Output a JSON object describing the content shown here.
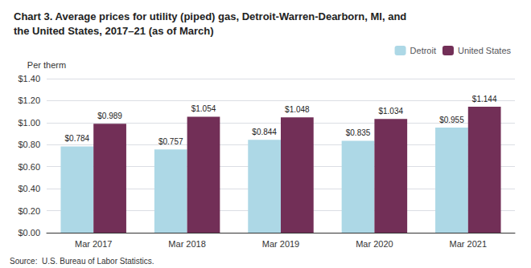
{
  "chart_data": {
    "type": "bar",
    "title": "Chart 3. Average prices for utility (piped) gas, Detroit-Warren-Dearborn, MI, and\nthe United States, 2017–21 (as of March)",
    "ylabel": "Per therm",
    "annotations": [
      "Source:  U.S. Bureau of Labor Statistics."
    ],
    "categories": [
      "Mar 2017",
      "Mar 2018",
      "Mar 2019",
      "Mar 2020",
      "Mar 2021"
    ],
    "series": [
      {
        "name": "Detroit",
        "color": "#add8e6",
        "values": [
          0.784,
          0.757,
          0.844,
          0.835,
          0.955
        ],
        "value_labels": [
          "$0.784",
          "$0.757",
          "$0.844",
          "$0.835",
          "$0.955"
        ]
      },
      {
        "name": "United States",
        "color": "#722f57",
        "values": [
          0.989,
          1.054,
          1.048,
          1.034,
          1.144
        ],
        "value_labels": [
          "$0.989",
          "$1.054",
          "$1.048",
          "$1.034",
          "$1.144"
        ]
      }
    ],
    "ylim": [
      0.0,
      1.4
    ],
    "yticks": [
      {
        "value": 0.0,
        "label": "$0.00"
      },
      {
        "value": 0.2,
        "label": "$0.20"
      },
      {
        "value": 0.4,
        "label": "$0.40"
      },
      {
        "value": 0.6,
        "label": "$0.60"
      },
      {
        "value": 0.8,
        "label": "$0.80"
      },
      {
        "value": 1.0,
        "label": "$1.00"
      },
      {
        "value": 1.2,
        "label": "$1.20"
      },
      {
        "value": 1.4,
        "label": "$1.40"
      }
    ],
    "grid": true,
    "data_labels": true,
    "legend": "top-right"
  }
}
